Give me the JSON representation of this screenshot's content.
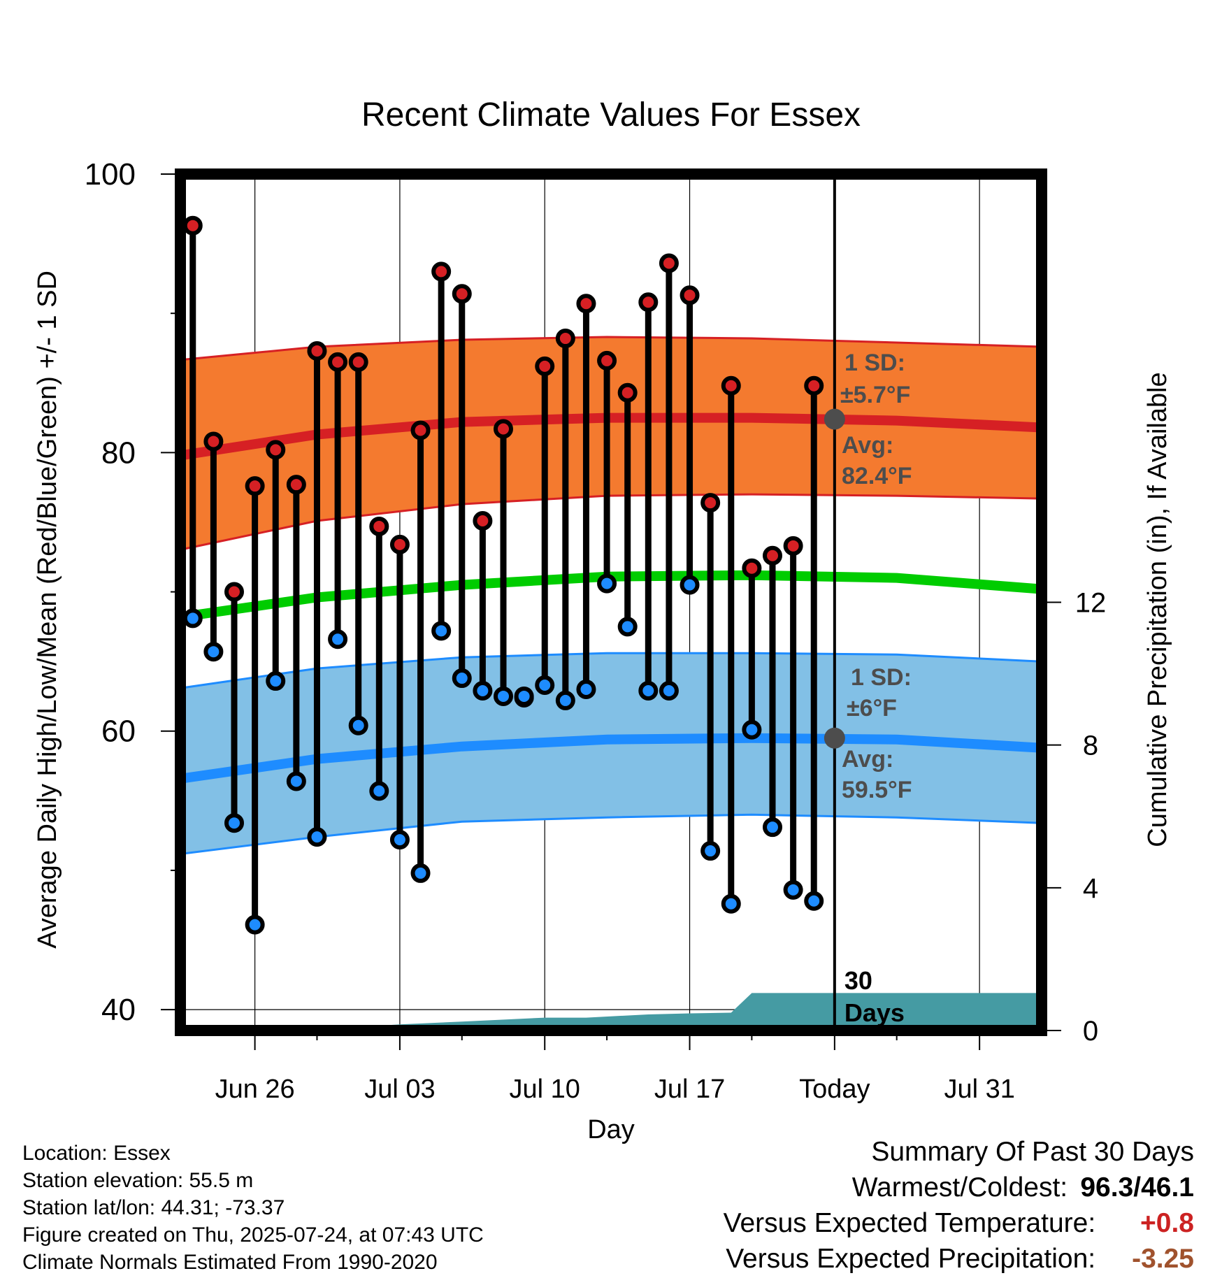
{
  "chart_data": {
    "type": "line",
    "title": "Recent Climate Values For Essex",
    "xlabel": "Day",
    "ylabel": "Average Daily High/Low/Mean (Red/Blue/Green) +/- 1 SD",
    "ylabel_right": "Cumulative Precipitation (in), If Available",
    "ylim": [
      38.5,
      100
    ],
    "ylim_right": [
      0,
      24
    ],
    "yticks": [
      40,
      60,
      80,
      100
    ],
    "yticks_right": [
      0,
      4,
      8,
      12
    ],
    "x_range": [
      "2025-06-22",
      "2025-08-03"
    ],
    "xticks": [
      {
        "date": "2025-06-26",
        "label": "Jun 26"
      },
      {
        "date": "2025-07-03",
        "label": "Jul 03"
      },
      {
        "date": "2025-07-10",
        "label": "Jul 10"
      },
      {
        "date": "2025-07-17",
        "label": "Jul 17"
      },
      {
        "date": "2025-07-24",
        "label": "Today"
      },
      {
        "date": "2025-07-31",
        "label": "Jul 31"
      }
    ],
    "grid": true,
    "today_date": "2025-07-24",
    "window_label": [
      "30",
      "Days"
    ],
    "colors": {
      "high_band": "#f47a2f",
      "high_line": "#d62024",
      "mean_line": "#00cc00",
      "low_band": "#82c0e6",
      "low_line": "#1e8cff",
      "precip": "#459ba3",
      "marker_high": "#d62024",
      "marker_low": "#1e8cff",
      "annotation": "#4d4d4d"
    },
    "normals": {
      "dates": [
        "2025-06-22",
        "2025-06-29",
        "2025-07-06",
        "2025-07-13",
        "2025-07-20",
        "2025-07-27",
        "2025-08-03"
      ],
      "high_avg": [
        79.7,
        81.3,
        82.2,
        82.5,
        82.5,
        82.3,
        81.8
      ],
      "high_sd_upper": [
        86.6,
        87.6,
        88.1,
        88.3,
        88.2,
        87.9,
        87.6
      ],
      "high_sd_lower": [
        72.9,
        75.1,
        76.3,
        76.9,
        77.0,
        76.9,
        76.7
      ],
      "mean_avg": [
        68.1,
        69.6,
        70.5,
        71.1,
        71.2,
        71.0,
        70.2
      ],
      "low_avg": [
        56.5,
        58.0,
        58.9,
        59.4,
        59.5,
        59.4,
        58.8
      ],
      "low_sd_upper": [
        63.0,
        64.5,
        65.3,
        65.6,
        65.6,
        65.5,
        65.0
      ],
      "low_sd_lower": [
        51.1,
        52.4,
        53.5,
        53.8,
        54.0,
        53.8,
        53.4
      ]
    },
    "series": [
      {
        "name": "High",
        "dates": [
          "2025-06-23",
          "2025-06-24",
          "2025-06-25",
          "2025-06-26",
          "2025-06-27",
          "2025-06-28",
          "2025-06-29",
          "2025-06-30",
          "2025-07-01",
          "2025-07-02",
          "2025-07-03",
          "2025-07-04",
          "2025-07-05",
          "2025-07-06",
          "2025-07-07",
          "2025-07-08",
          "2025-07-09",
          "2025-07-10",
          "2025-07-11",
          "2025-07-12",
          "2025-07-13",
          "2025-07-14",
          "2025-07-15",
          "2025-07-16",
          "2025-07-17",
          "2025-07-18",
          "2025-07-19",
          "2025-07-20",
          "2025-07-21",
          "2025-07-22",
          "2025-07-23"
        ],
        "values": [
          96.3,
          80.8,
          70.0,
          77.6,
          80.2,
          77.7,
          87.3,
          86.5,
          86.5,
          74.7,
          73.4,
          81.6,
          93.0,
          91.4,
          75.1,
          81.7,
          62.4,
          86.2,
          88.2,
          90.7,
          86.6,
          84.3,
          90.8,
          93.6,
          91.3,
          76.4,
          84.8,
          71.7,
          72.6,
          73.3,
          84.8
        ]
      },
      {
        "name": "Low",
        "dates": [
          "2025-06-23",
          "2025-06-24",
          "2025-06-25",
          "2025-06-26",
          "2025-06-27",
          "2025-06-28",
          "2025-06-29",
          "2025-06-30",
          "2025-07-01",
          "2025-07-02",
          "2025-07-03",
          "2025-07-04",
          "2025-07-05",
          "2025-07-06",
          "2025-07-07",
          "2025-07-08",
          "2025-07-09",
          "2025-07-10",
          "2025-07-11",
          "2025-07-12",
          "2025-07-13",
          "2025-07-14",
          "2025-07-15",
          "2025-07-16",
          "2025-07-17",
          "2025-07-18",
          "2025-07-19",
          "2025-07-20",
          "2025-07-21",
          "2025-07-22",
          "2025-07-23"
        ],
        "values": [
          68.1,
          65.7,
          53.4,
          46.1,
          63.6,
          56.4,
          52.4,
          66.6,
          60.4,
          55.7,
          52.2,
          49.8,
          67.2,
          63.8,
          62.9,
          62.5,
          62.5,
          63.3,
          62.2,
          63.0,
          70.6,
          67.5,
          62.9,
          62.9,
          70.5,
          51.4,
          47.6,
          60.1,
          53.1,
          48.6,
          47.8
        ]
      },
      {
        "name": "Cumulative Precipitation",
        "dates": [
          "2025-06-22",
          "2025-06-30",
          "2025-07-01",
          "2025-07-03",
          "2025-07-06",
          "2025-07-10",
          "2025-07-12",
          "2025-07-15",
          "2025-07-17",
          "2025-07-19",
          "2025-07-20",
          "2025-08-03"
        ],
        "values": [
          0.0,
          0.0,
          0.1,
          0.17,
          0.25,
          0.36,
          0.36,
          0.45,
          0.48,
          0.5,
          1.05,
          1.05
        ]
      }
    ],
    "annotations": {
      "high": {
        "sd_line1": "1 SD:",
        "sd_line2": "±5.7°F",
        "avg_line1": "Avg:",
        "avg_line2": "82.4°F",
        "avg_value": 82.4
      },
      "low": {
        "sd_line1": "1 SD:",
        "sd_line2": "±6°F",
        "avg_line1": "Avg:",
        "avg_line2": "59.5°F",
        "avg_value": 59.5
      }
    }
  },
  "station": {
    "location": "Location: Essex",
    "elevation": "Station elevation: 55.5 m",
    "latlon": "Station lat/lon: 44.31; -73.37",
    "created": "Figure created on Thu, 2025-07-24, at 07:43 UTC",
    "normals": "Climate Normals Estimated From 1990-2020"
  },
  "summary": {
    "title": "Summary Of Past 30 Days",
    "warm_cold_label": "Warmest/Coldest:",
    "warm_cold_value": "96.3/46.1",
    "temp_label": "Versus Expected Temperature:",
    "temp_value": "+0.8",
    "temp_color": "#cc2222",
    "precip_label": "Versus Expected Precipitation:",
    "precip_value": "-3.25",
    "precip_color": "#a0522d"
  }
}
